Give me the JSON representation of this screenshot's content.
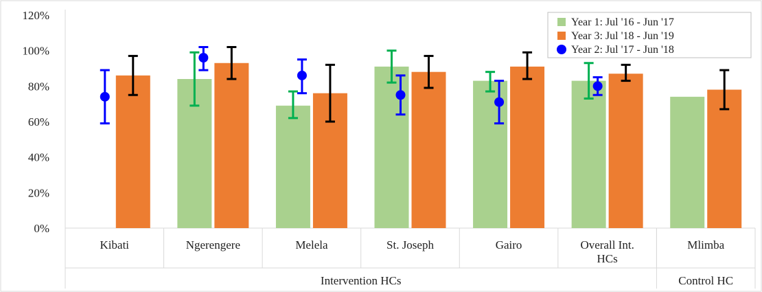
{
  "colors": {
    "year1": "#a9d18e",
    "year3": "#ed7d31",
    "year2": "#0000ff",
    "err_year1": "#00b050",
    "err_year3": "#000000",
    "err_year2": "#0000ff",
    "axis": "#d9d9d9"
  },
  "chart_data": {
    "type": "bar",
    "title": "",
    "xlabel": "",
    "ylabel": "",
    "ylim": [
      0,
      120
    ],
    "y_ticks": [
      0,
      20,
      40,
      60,
      80,
      100,
      120
    ],
    "y_tick_labels": [
      "0%",
      "20%",
      "40%",
      "60%",
      "80%",
      "100%",
      "120%"
    ],
    "grid": false,
    "legend_position": "top-right",
    "categories": [
      [
        "Kibati"
      ],
      [
        "Ngerengere"
      ],
      [
        "Melela"
      ],
      [
        "St. Joseph"
      ],
      [
        "Gairo"
      ],
      [
        "Overall Int.",
        "HCs"
      ],
      [
        "Mlimba"
      ]
    ],
    "groups": [
      {
        "label": "Intervention HCs",
        "start": 0,
        "end": 5
      },
      {
        "label": "Control HC",
        "start": 6,
        "end": 6
      }
    ],
    "series": [
      {
        "name": "Year 1: Jul '16 - Jun '17",
        "mark": "bar",
        "values": [
          null,
          84,
          69,
          91,
          83,
          83,
          74
        ],
        "err_low": [
          null,
          69,
          62,
          82,
          77,
          73,
          null
        ],
        "err_high": [
          null,
          99,
          77,
          100,
          88,
          93,
          null
        ]
      },
      {
        "name": "Year 3: Jul '18 - Jun '19",
        "mark": "bar",
        "values": [
          86,
          93,
          76,
          88,
          91,
          87,
          78
        ],
        "err_low": [
          75,
          84,
          60,
          79,
          84,
          83,
          67
        ],
        "err_high": [
          97,
          102,
          92,
          97,
          99,
          92,
          89
        ]
      },
      {
        "name": "Year 2: Jul '17 - Jun '18",
        "mark": "point",
        "values": [
          74,
          96,
          86,
          75,
          71,
          80,
          null
        ],
        "err_low": [
          59,
          89,
          76,
          64,
          59,
          75,
          null
        ],
        "err_high": [
          89,
          102,
          95,
          86,
          83,
          85,
          null
        ]
      }
    ],
    "legend_order": [
      0,
      1,
      2
    ]
  }
}
